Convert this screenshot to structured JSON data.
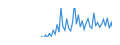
{
  "chart_data": {
    "type": "line",
    "x": [
      0,
      1,
      2,
      3,
      4,
      5,
      6,
      7,
      8,
      9,
      10,
      11,
      12,
      13,
      14,
      15,
      16,
      17,
      18,
      19,
      20,
      21,
      22,
      23,
      24,
      25,
      26,
      27,
      28,
      29,
      30,
      31,
      32,
      33,
      34,
      35,
      36,
      37,
      38,
      39,
      40,
      41,
      42,
      43,
      44,
      45,
      46,
      47,
      48,
      49,
      50,
      51,
      52,
      53,
      54,
      55,
      56,
      57,
      58,
      59
    ],
    "values": [
      3,
      4,
      0,
      5,
      3,
      4,
      6,
      3,
      5,
      4,
      7,
      5,
      4,
      8,
      6,
      5,
      9,
      7,
      12,
      8,
      14,
      10,
      18,
      12,
      22,
      15,
      30,
      20,
      45,
      25,
      88,
      40,
      30,
      60,
      35,
      28,
      50,
      100,
      45,
      70,
      38,
      55,
      32,
      48,
      60,
      40,
      35,
      75,
      42,
      50,
      38,
      45,
      58,
      40,
      62,
      35,
      50,
      30,
      12,
      20
    ],
    "color": "#3a8fd9",
    "xlim": [
      0,
      59
    ],
    "ylim": [
      0,
      100
    ],
    "tick_labels": false
  }
}
